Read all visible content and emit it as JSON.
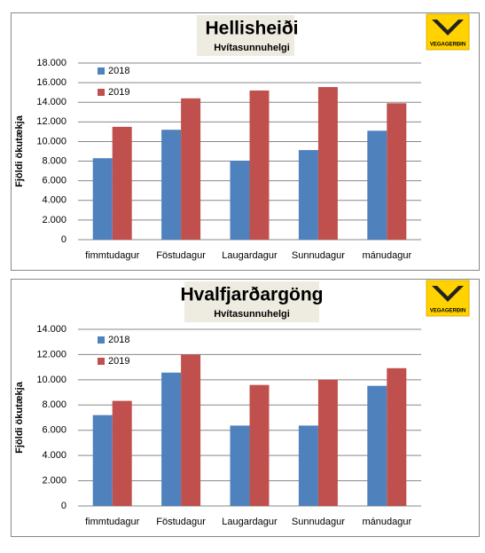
{
  "chart_data": [
    {
      "type": "bar",
      "title": "Hellisheiði",
      "subtitle": "Hvítasunnuhelgi",
      "logo": "VEGAGERÐIN",
      "y_label": "Fjöldi ökutækja",
      "categories": [
        "fimmtudagur",
        "Föstudagur",
        "Laugardagur",
        "Sunnudagur",
        "mánudagur"
      ],
      "series": [
        {
          "name": "2018",
          "color": "#4f81bd",
          "values": [
            8300,
            11200,
            8050,
            9130,
            11100
          ]
        },
        {
          "name": "2019",
          "color": "#c0504d",
          "values": [
            11500,
            14400,
            15200,
            15550,
            13900
          ]
        }
      ],
      "ylim": [
        0,
        18000
      ],
      "yticks": [
        0,
        {
          "value": 2000,
          "label": "2.000"
        },
        {
          "value": 4000,
          "label": "4.000"
        },
        {
          "value": 6000,
          "label": "6.000"
        },
        {
          "value": 8000,
          "label": "8.000"
        },
        {
          "value": 10000,
          "label": "10.000"
        },
        {
          "value": 12000,
          "label": "12.000"
        },
        {
          "value": 14000,
          "label": "14.000"
        },
        {
          "value": 16000,
          "label": "16.000"
        },
        {
          "value": 18000,
          "label": "18.000"
        }
      ],
      "grid": true,
      "legend": "top-left"
    },
    {
      "type": "bar",
      "title": "Hvalfjarðargöng",
      "subtitle": "Hvítasunnuhelgi",
      "logo": "VEGAGERÐIN",
      "y_label": "Fjöldi ökutækja",
      "categories": [
        "fimmtudagur",
        "Föstudagur",
        "Laugardagur",
        "Sunnudagur",
        "mánudagur"
      ],
      "series": [
        {
          "name": "2018",
          "color": "#4f81bd",
          "values": [
            7200,
            10570,
            6370,
            6370,
            9520
          ]
        },
        {
          "name": "2019",
          "color": "#c0504d",
          "values": [
            8330,
            12000,
            9590,
            10000,
            10920
          ]
        }
      ],
      "ylim": [
        0,
        14000
      ],
      "yticks": [
        0,
        {
          "value": 2000,
          "label": "2.000"
        },
        {
          "value": 4000,
          "label": "4.000"
        },
        {
          "value": 6000,
          "label": "6.000"
        },
        {
          "value": 8000,
          "label": "8.000"
        },
        {
          "value": 10000,
          "label": "10.000"
        },
        {
          "value": 12000,
          "label": "12.000"
        },
        {
          "value": 14000,
          "label": "14.000"
        }
      ],
      "grid": true,
      "legend": "top-left"
    }
  ]
}
